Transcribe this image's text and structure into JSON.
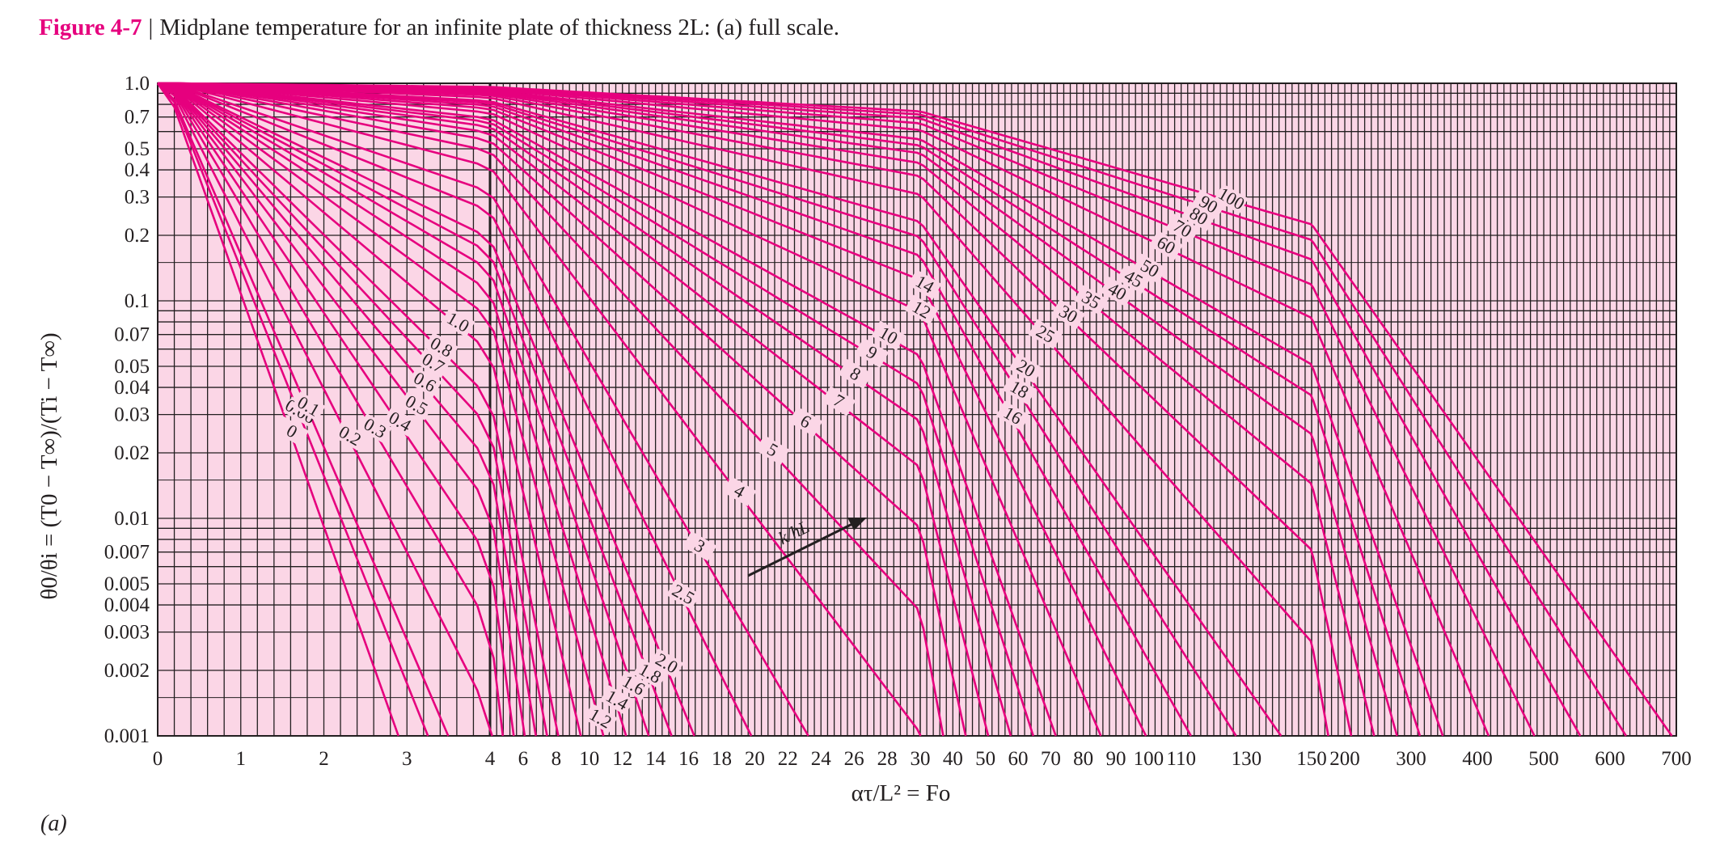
{
  "caption": {
    "figure_number": "Figure 4-7",
    "text": "Midplane temperature for an infinite plate of thickness 2L: (a) full scale."
  },
  "panel_label": "(a)",
  "colors": {
    "background": "#fbd6e6",
    "grid": "#231f20",
    "curve": "#e6007e",
    "label_bg": "#fbd6e6",
    "caption_accent": "#e6007e"
  },
  "chart_data": {
    "type": "line",
    "x_scale": "piecewise-linear",
    "y_scale": "log",
    "grid": true,
    "xlabel": "ατ/L² = Fo",
    "ylabel": "θ0/θi = (T0 − T∞)/(Ti − T∞)",
    "ylim": [
      0.001,
      1.0
    ],
    "xlim": [
      0,
      700
    ],
    "x_segments": [
      {
        "from": 0,
        "to": 4,
        "step": 1
      },
      {
        "from": 4,
        "to": 30,
        "step": 2
      },
      {
        "from": 30,
        "to": 150,
        "step": 10
      },
      {
        "from": 150,
        "to": 700,
        "step": 50
      }
    ],
    "x_tick_labels": [
      "0",
      "1",
      "2",
      "3",
      "4",
      "6",
      "8",
      "10",
      "12",
      "14",
      "16",
      "18",
      "20",
      "22",
      "24",
      "26",
      "28",
      "30",
      "40",
      "50",
      "60",
      "70",
      "80",
      "90",
      "100",
      "110",
      "130",
      "150",
      "200",
      "300",
      "400",
      "500",
      "600",
      "700"
    ],
    "x_tick_values": [
      0,
      1,
      2,
      3,
      4,
      6,
      8,
      10,
      12,
      14,
      16,
      18,
      20,
      22,
      24,
      26,
      28,
      30,
      40,
      50,
      60,
      70,
      80,
      90,
      100,
      110,
      130,
      150,
      200,
      300,
      400,
      500,
      600,
      700
    ],
    "y_tick_labels": [
      "1.0",
      "0.7",
      "0.5",
      "0.4",
      "0.3",
      "0.2",
      "0.1",
      "0.07",
      "0.05",
      "0.04",
      "0.03",
      "0.02",
      "0.01",
      "0.007",
      "0.005",
      "0.004",
      "0.003",
      "0.002",
      "0.001"
    ],
    "y_tick_values": [
      1.0,
      0.7,
      0.5,
      0.4,
      0.3,
      0.2,
      0.1,
      0.07,
      0.05,
      0.04,
      0.03,
      0.02,
      0.01,
      0.007,
      0.005,
      0.004,
      0.003,
      0.002,
      0.001
    ],
    "curve_family_label": "k/hL",
    "curve_labels": [
      "0",
      "0.06",
      "0.1",
      "0.2",
      "0.3",
      "0.4",
      "0.5",
      "0.6",
      "0.7",
      "0.8",
      "1.0",
      "1.2",
      "1.4",
      "1.6",
      "1.8",
      "2.0",
      "2.5",
      "3",
      "4",
      "5",
      "6",
      "7",
      "8",
      "9",
      "10",
      "12",
      "14",
      "16",
      "18",
      "20",
      "25",
      "30",
      "35",
      "40",
      "45",
      "50",
      "60",
      "70",
      "80",
      "90",
      "100"
    ],
    "curve_k_over_hL": [
      0,
      0.06,
      0.1,
      0.2,
      0.3,
      0.4,
      0.5,
      0.6,
      0.7,
      0.8,
      1.0,
      1.2,
      1.4,
      1.6,
      1.8,
      2.0,
      2.5,
      3,
      4,
      5,
      6,
      7,
      8,
      9,
      10,
      12,
      14,
      16,
      18,
      20,
      25,
      30,
      35,
      40,
      45,
      50,
      60,
      70,
      80,
      90,
      100
    ]
  }
}
